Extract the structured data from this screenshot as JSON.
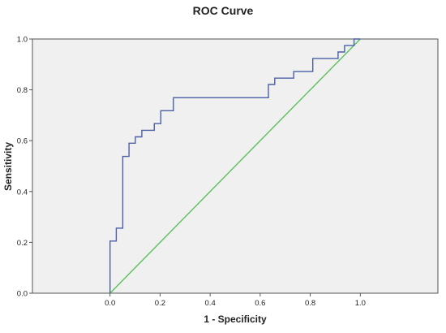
{
  "chart_data": {
    "type": "line",
    "title": "ROC Curve",
    "xlabel": "1 - Specificity",
    "ylabel": "Sensitivity",
    "xlim": [
      -0.31,
      1.31
    ],
    "ylim": [
      0.0,
      1.0
    ],
    "x_ticks": [
      0.0,
      0.2,
      0.4,
      0.6,
      0.8,
      1.0
    ],
    "y_ticks": [
      0.0,
      0.2,
      0.4,
      0.6,
      0.8,
      1.0
    ],
    "x_tick_labels": [
      "0.0",
      "0.2",
      "0.4",
      "0.6",
      "0.8",
      "1.0"
    ],
    "y_tick_labels": [
      "0.0",
      "0.2",
      "0.4",
      "0.6",
      "0.8",
      "1.0"
    ],
    "grid": false,
    "legend": "none",
    "plot_background": "#f0f0f0",
    "series": [
      {
        "color": "#4a5fa8",
        "step": true,
        "points": [
          [
            0.0,
            0.0
          ],
          [
            0.0,
            0.205
          ],
          [
            0.025,
            0.205
          ],
          [
            0.025,
            0.256
          ],
          [
            0.051,
            0.256
          ],
          [
            0.051,
            0.538
          ],
          [
            0.076,
            0.538
          ],
          [
            0.076,
            0.59
          ],
          [
            0.101,
            0.59
          ],
          [
            0.101,
            0.615
          ],
          [
            0.127,
            0.615
          ],
          [
            0.127,
            0.641
          ],
          [
            0.177,
            0.641
          ],
          [
            0.177,
            0.667
          ],
          [
            0.203,
            0.667
          ],
          [
            0.203,
            0.718
          ],
          [
            0.253,
            0.718
          ],
          [
            0.253,
            0.769
          ],
          [
            0.633,
            0.769
          ],
          [
            0.633,
            0.821
          ],
          [
            0.658,
            0.821
          ],
          [
            0.658,
            0.846
          ],
          [
            0.734,
            0.846
          ],
          [
            0.734,
            0.872
          ],
          [
            0.81,
            0.872
          ],
          [
            0.81,
            0.923
          ],
          [
            0.911,
            0.923
          ],
          [
            0.911,
            0.949
          ],
          [
            0.937,
            0.949
          ],
          [
            0.937,
            0.974
          ],
          [
            0.975,
            0.974
          ],
          [
            0.975,
            1.0
          ],
          [
            1.0,
            1.0
          ]
        ]
      },
      {
        "color": "#5cbf5c",
        "step": false,
        "points": [
          [
            0.0,
            0.0
          ],
          [
            1.0,
            1.0
          ]
        ]
      }
    ]
  }
}
